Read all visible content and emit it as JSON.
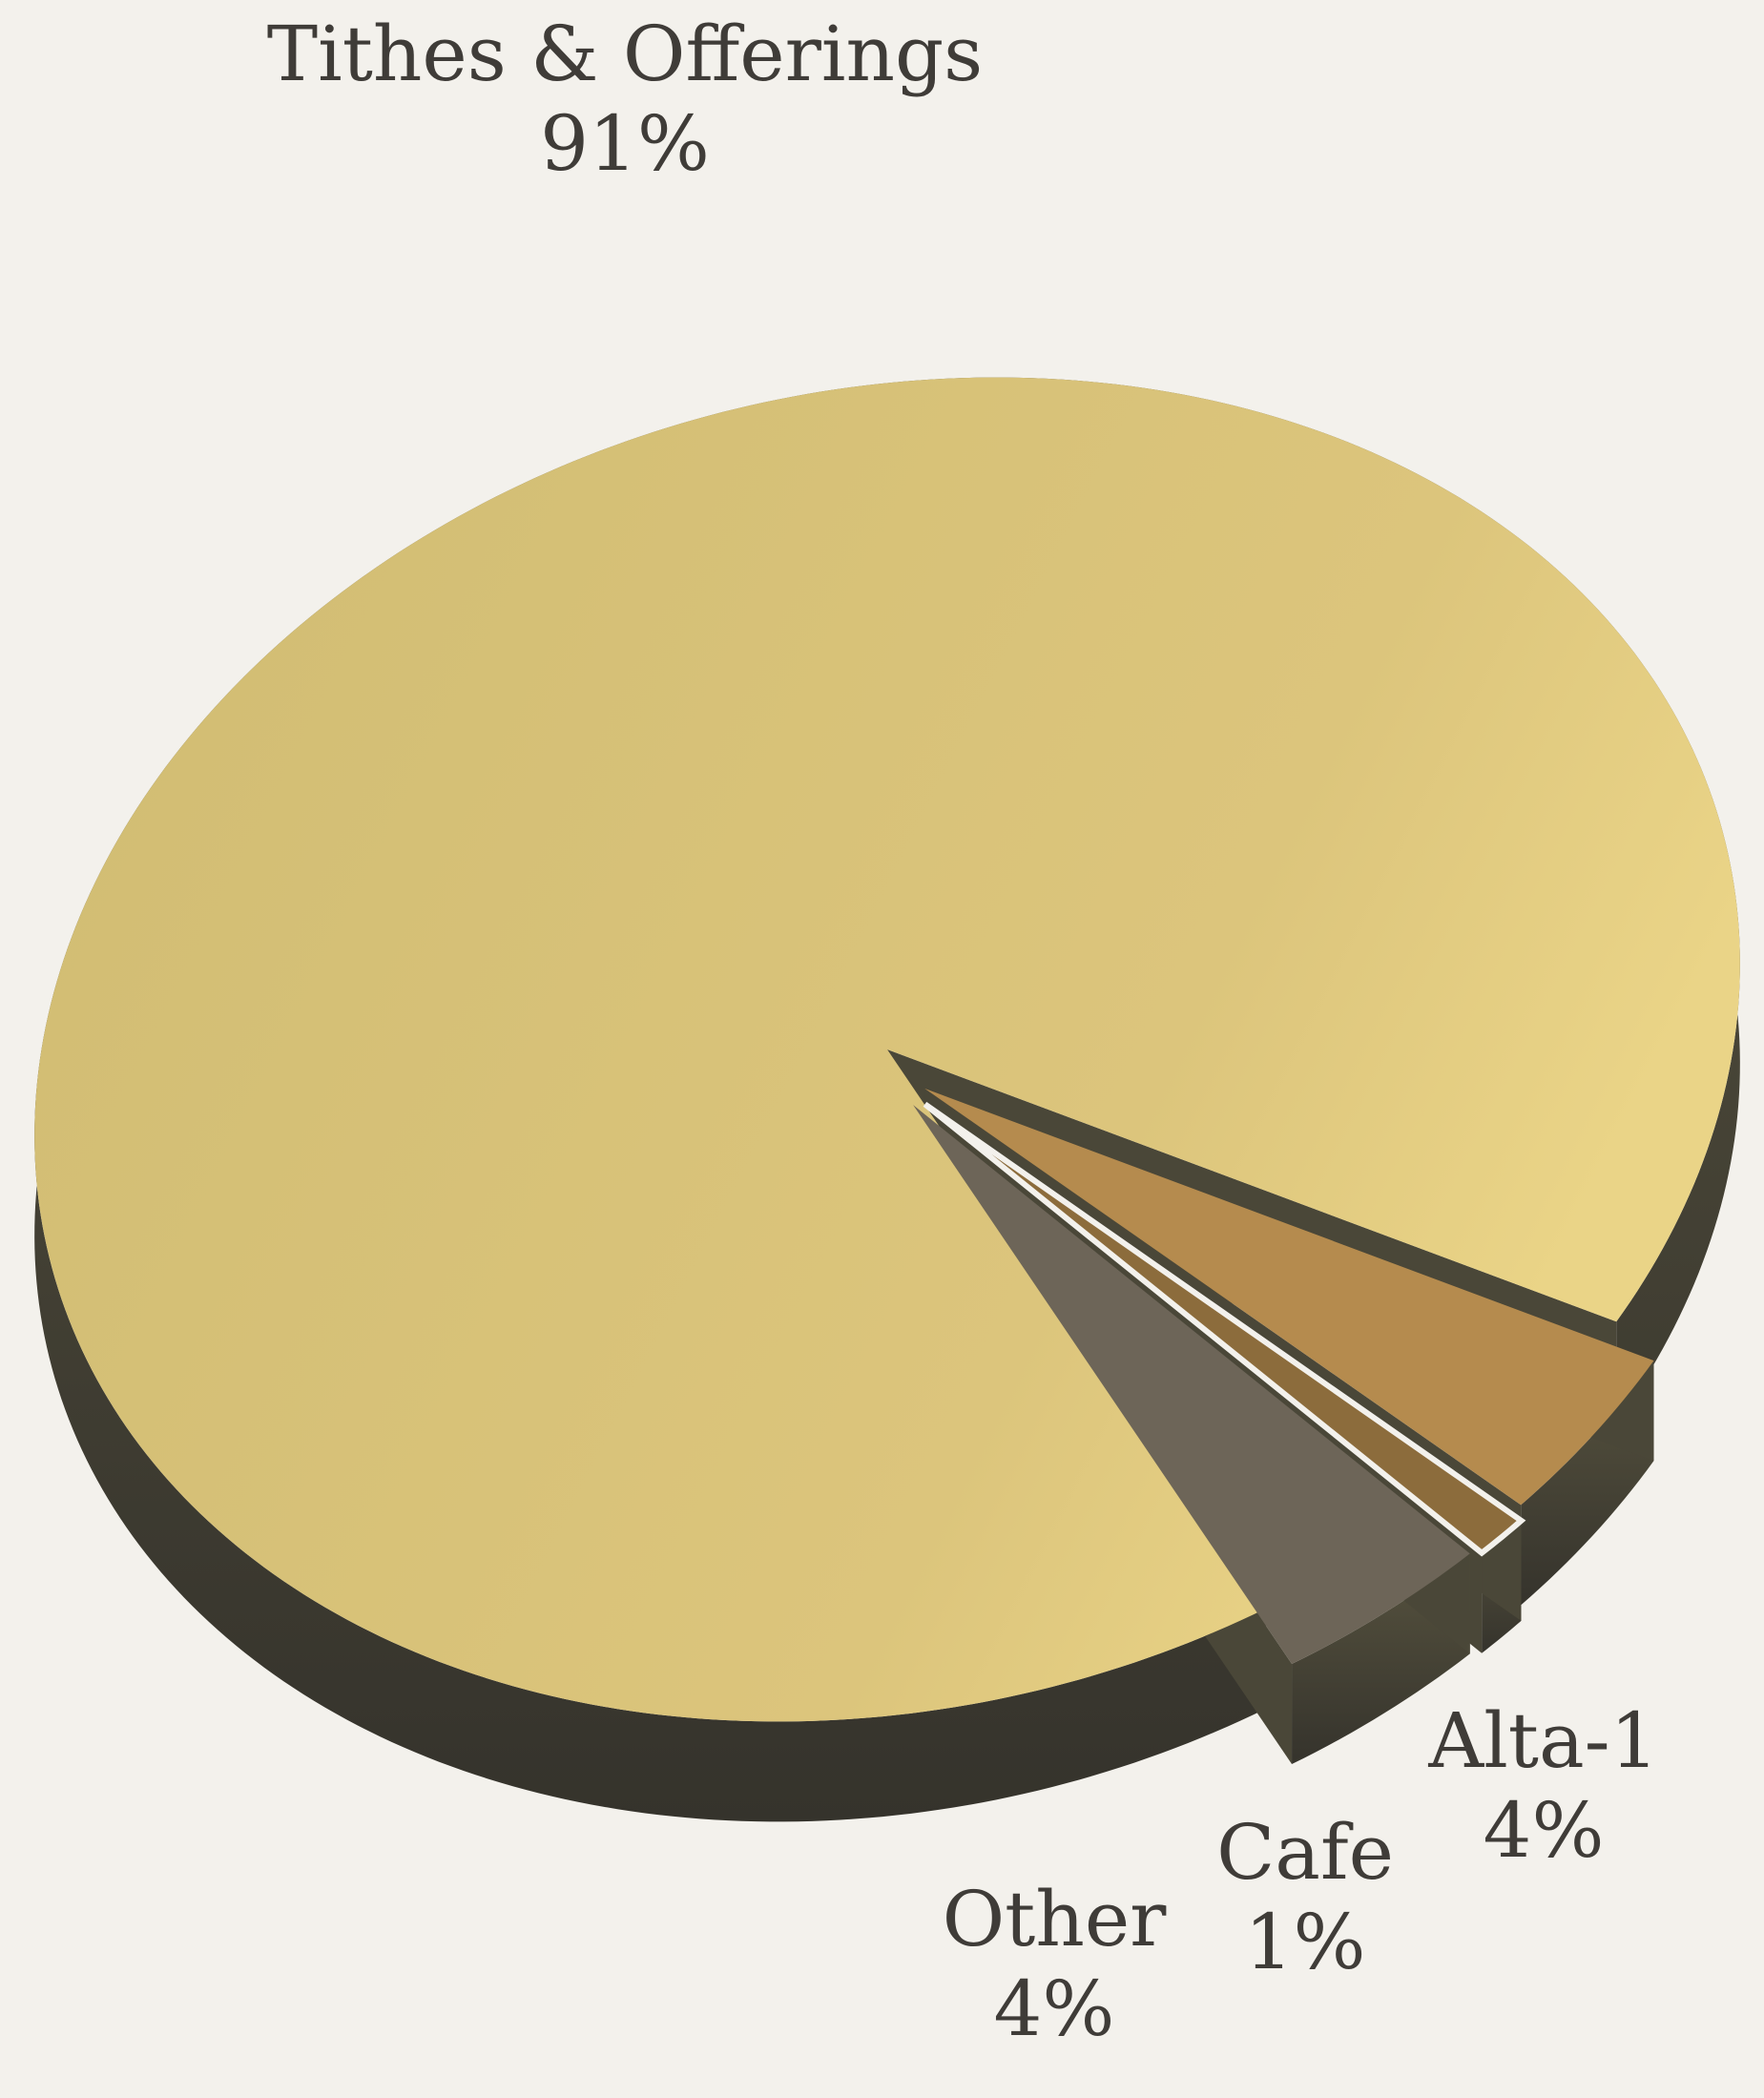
{
  "chart_data": {
    "type": "pie",
    "style": "3d-exploded",
    "slices": [
      {
        "label": "Tithes & Offerings",
        "value": 91,
        "display": "91%",
        "color": "#d6c076"
      },
      {
        "label": "Alta-1",
        "value": 4,
        "display": "4%",
        "color": "#b58b4e"
      },
      {
        "label": "Cafe",
        "value": 1,
        "display": "1%",
        "color": "#8c6c3c"
      },
      {
        "label": "Other",
        "value": 4,
        "display": "4%",
        "color": "#6d6558"
      }
    ],
    "background": "#f3f1ec",
    "side_color": "#3f3d33",
    "label_color": "#3f3c38"
  }
}
